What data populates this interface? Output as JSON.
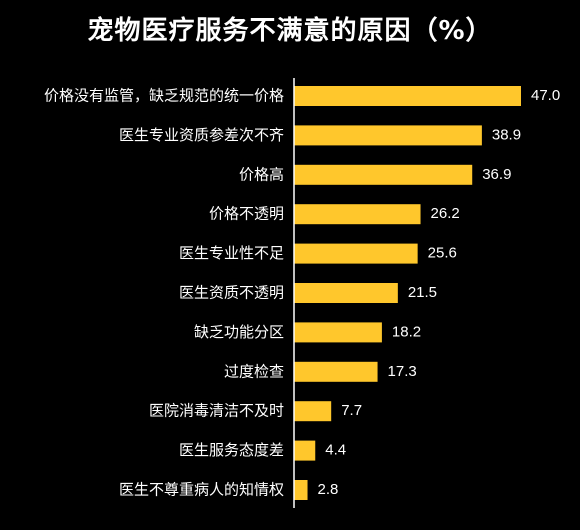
{
  "chart_data": {
    "type": "bar",
    "orientation": "horizontal",
    "title": "宠物医疗服务不满意的原因（%）",
    "categories": [
      "价格没有监管，缺乏规范的统一价格",
      "医生专业资质参差次不齐",
      "价格高",
      "价格不透明",
      "医生专业性不足",
      "医生资质不透明",
      "缺乏功能分区",
      "过度检查",
      "医院消毒清洁不及时",
      "医生服务态度差",
      "医生不尊重病人的知情权"
    ],
    "values": [
      47.0,
      38.9,
      36.9,
      26.2,
      25.6,
      21.5,
      18.2,
      17.3,
      7.7,
      4.4,
      2.8
    ],
    "value_labels": [
      "47.0",
      "38.9",
      "36.9",
      "26.2",
      "25.6",
      "21.5",
      "18.2",
      "17.3",
      "7.7",
      "4.4",
      "2.8"
    ],
    "xlim": [
      0,
      47.0
    ],
    "grid": false,
    "legend": "none",
    "colors": {
      "bar": "#FFC72C",
      "background": "#000000",
      "text": "#FFFFFF"
    }
  }
}
